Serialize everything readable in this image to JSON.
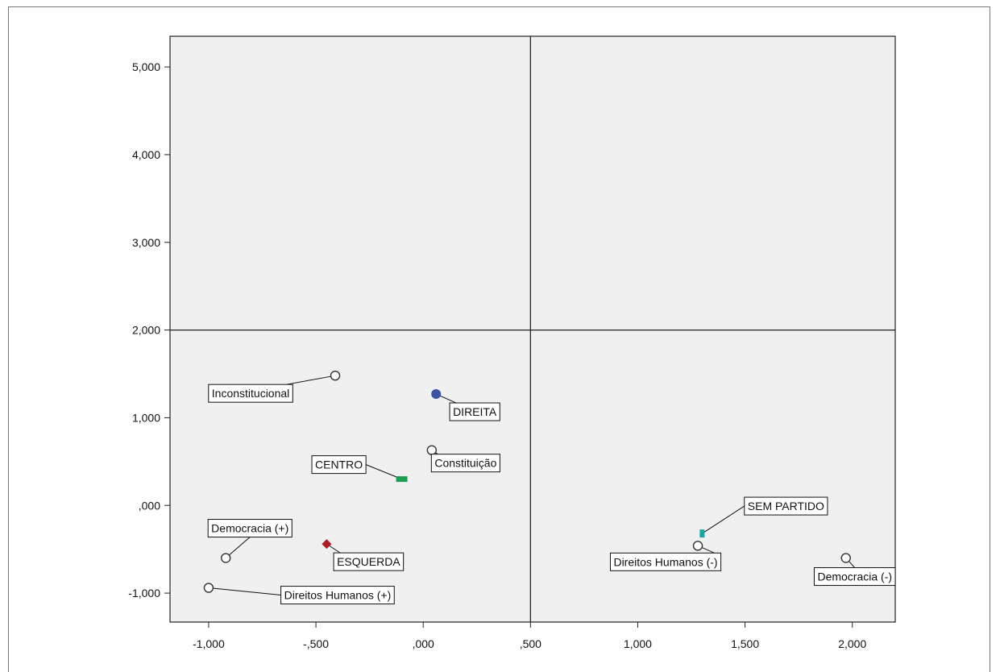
{
  "chart_data": {
    "type": "scatter",
    "title": "",
    "xlabel": "",
    "ylabel": "",
    "xlim": [
      -1.18,
      2.2
    ],
    "ylim": [
      -1.33,
      5.35
    ],
    "x_ticks": [
      -1.0,
      -0.5,
      0.0,
      0.5,
      1.0,
      1.5,
      2.0
    ],
    "x_tick_labels": [
      "-1,000",
      "-,500",
      ",000",
      ",500",
      "1,000",
      "1,500",
      "2,000"
    ],
    "y_ticks": [
      -1.0,
      0.0,
      1.0,
      2.0,
      3.0,
      4.0,
      5.0
    ],
    "y_tick_labels": [
      "-1,000",
      ",000",
      "1,000",
      "2,000",
      "3,000",
      "4,000",
      "5,000"
    ],
    "reference_lines": {
      "x": 0.5,
      "y": 2.0
    },
    "grid": false,
    "legend": "none",
    "plot_background": "#f0f0f0",
    "points": [
      {
        "label": "Inconstitucional",
        "x": -0.41,
        "y": 1.48,
        "marker": "open-circle",
        "color": "#333333"
      },
      {
        "label": "DIREITA",
        "x": 0.06,
        "y": 1.27,
        "marker": "filled-circle",
        "color": "#3c52a3"
      },
      {
        "label": "Constituição",
        "x": 0.04,
        "y": 0.63,
        "marker": "open-circle",
        "color": "#333333"
      },
      {
        "label": "CENTRO",
        "x": -0.1,
        "y": 0.3,
        "marker": "bar",
        "color": "#1e9e52"
      },
      {
        "label": "Democracia (+)",
        "x": -0.92,
        "y": -0.6,
        "marker": "open-circle",
        "color": "#333333"
      },
      {
        "label": "ESQUERDA",
        "x": -0.45,
        "y": -0.44,
        "marker": "diamond",
        "color": "#b01e23"
      },
      {
        "label": "Direitos Humanos (+)",
        "x": -1.0,
        "y": -0.94,
        "marker": "open-circle",
        "color": "#333333"
      },
      {
        "label": "SEM PARTIDO",
        "x": 1.3,
        "y": -0.32,
        "marker": "bar",
        "color": "#1aa6a6"
      },
      {
        "label": "Direitos Humanos (-)",
        "x": 1.28,
        "y": -0.46,
        "marker": "open-circle",
        "color": "#333333"
      },
      {
        "label": "Democracia (-)",
        "x": 1.97,
        "y": -0.6,
        "marker": "open-circle",
        "color": "#333333"
      }
    ]
  }
}
